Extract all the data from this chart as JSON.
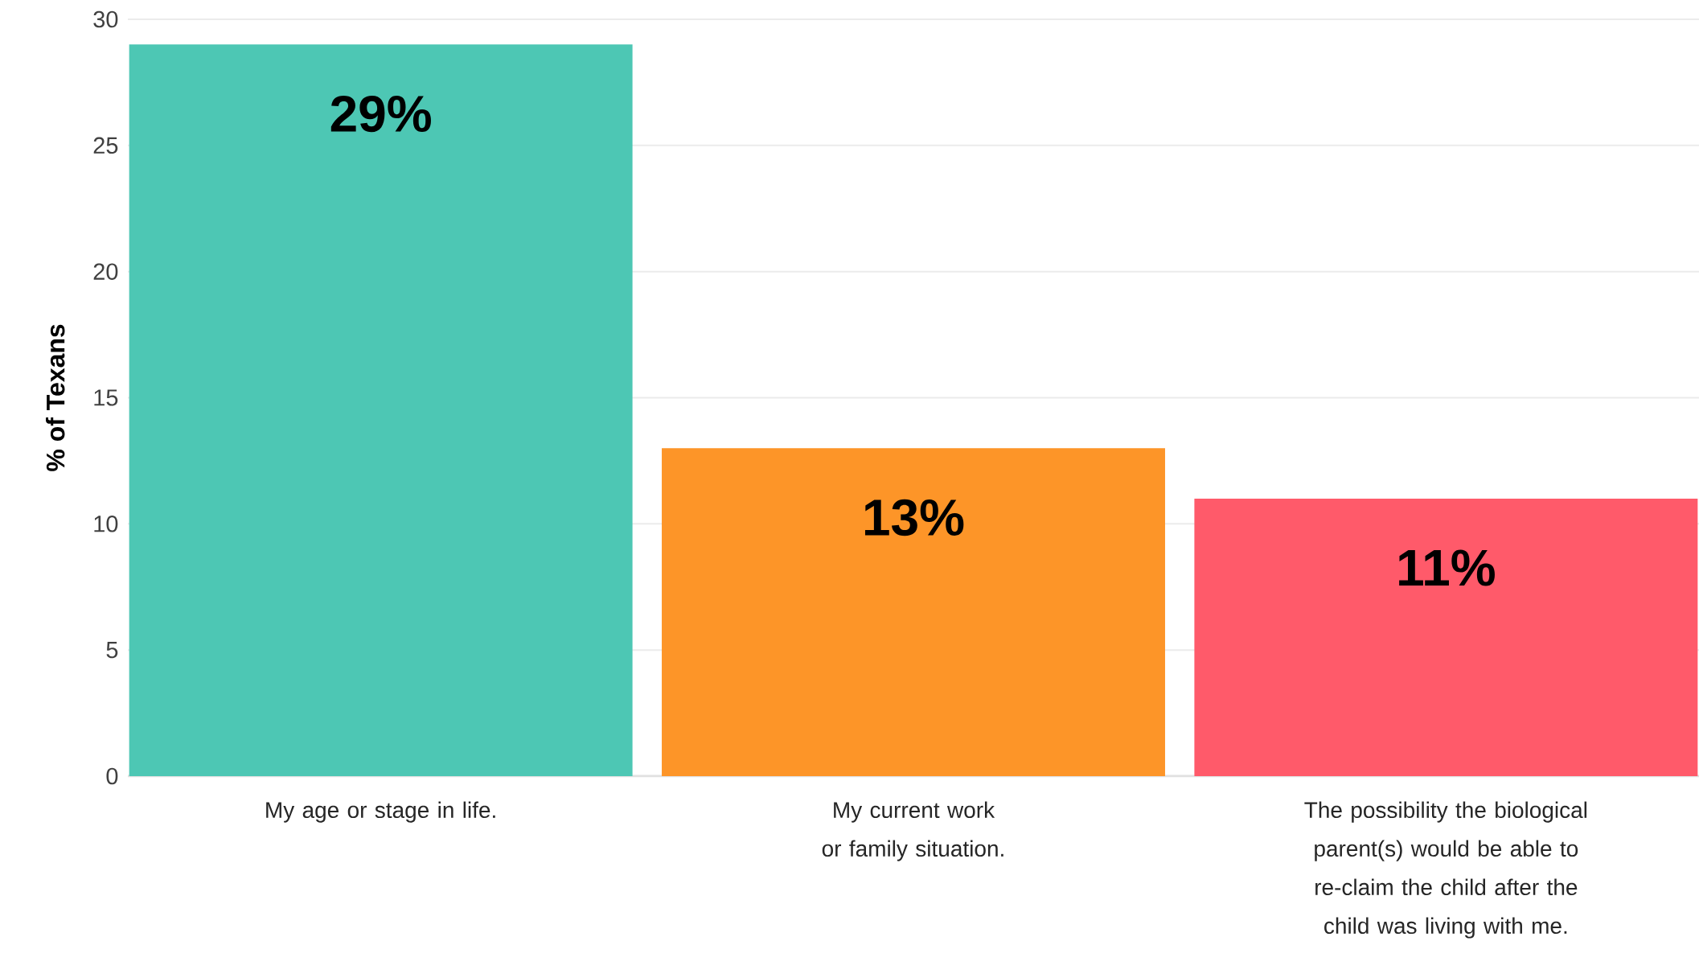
{
  "chart_data": {
    "type": "bar",
    "ylabel": "% of Texans",
    "categories": [
      "My age or stage in life.",
      "My current work or family situation.",
      "The possibility the biological parent(s) would be able to re-claim the child after the child was living with me."
    ],
    "values": [
      29,
      13,
      11
    ],
    "value_labels": [
      "29%",
      "13%",
      "11%"
    ],
    "colors": [
      "#4dc7b4",
      "#fd9528",
      "#ff5a6a"
    ],
    "ylim": [
      0,
      30
    ],
    "yticks": [
      0,
      5,
      10,
      15,
      20,
      25,
      30
    ],
    "grid": "y"
  }
}
